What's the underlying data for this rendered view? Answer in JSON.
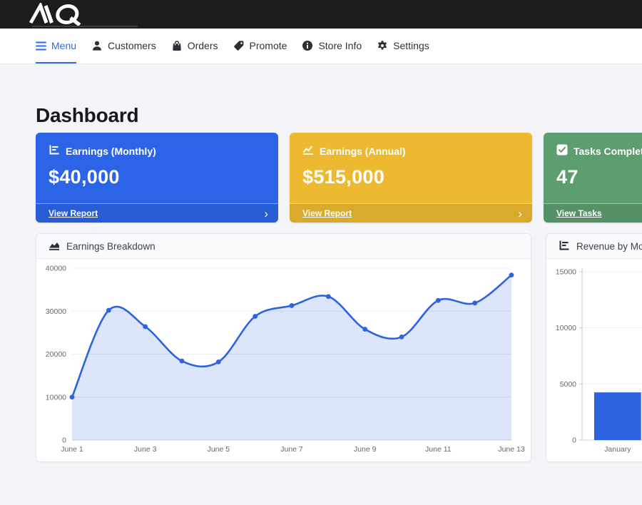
{
  "colors": {
    "accent_blue": "#2d6ae3",
    "topbar_bg": "#1d1d1f",
    "page_bg": "#f3f5f8",
    "chart_blue": "#2d63df"
  },
  "topbar": {
    "brand": "AIQ"
  },
  "nav": {
    "items": [
      {
        "label": "Menu",
        "icon": "hamburger",
        "active": true
      },
      {
        "label": "Customers",
        "icon": "person",
        "active": false
      },
      {
        "label": "Orders",
        "icon": "shopping-bag",
        "active": false
      },
      {
        "label": "Promote",
        "icon": "tag",
        "active": false
      },
      {
        "label": "Store Info",
        "icon": "info-circle",
        "active": false
      },
      {
        "label": "Settings",
        "icon": "gear",
        "active": false
      }
    ]
  },
  "page": {
    "title": "Dashboard"
  },
  "icons": {
    "chevron_right": "›"
  },
  "stat_cards": [
    {
      "title": "Earnings (Monthly)",
      "value": "$40,000",
      "link_label": "View Report",
      "color": "#2c64e8",
      "icon": "bar-chart"
    },
    {
      "title": "Earnings (Annual)",
      "value": "$515,000",
      "link_label": "View Report",
      "color": "#ecb930",
      "icon": "line-chart"
    },
    {
      "title": "Tasks Completed",
      "value": "47",
      "link_label": "View Tasks",
      "color": "#5d9e70",
      "icon": "check-square"
    }
  ],
  "chart_data": [
    {
      "type": "area",
      "title": "Earnings Breakdown",
      "x": [
        "June 1",
        "June 2",
        "June 3",
        "June 4",
        "June 5",
        "June 6",
        "June 7",
        "June 8",
        "June 9",
        "June 10",
        "June 11",
        "June 12",
        "June 13"
      ],
      "values": [
        10000,
        30200,
        26400,
        18400,
        18200,
        28800,
        31300,
        33400,
        25800,
        24000,
        32500,
        31900,
        38400
      ],
      "ylim": [
        0,
        40000
      ],
      "yticks": [
        0,
        10000,
        20000,
        30000,
        40000
      ],
      "x_label_every": 2,
      "line_color": "#2d63df",
      "fill_color": "rgba(45,99,223,0.17)",
      "grid": true,
      "legend": "none",
      "xlabel": "",
      "ylabel": ""
    },
    {
      "type": "bar",
      "title": "Revenue by Month",
      "categories": [
        "January"
      ],
      "values": [
        4250
      ],
      "ylim": [
        0,
        15000
      ],
      "yticks": [
        0,
        5000,
        10000,
        15000
      ],
      "slot_count": 6,
      "bar_color": "#2d63df",
      "grid": true,
      "legend": "none",
      "xlabel": "",
      "ylabel": ""
    }
  ]
}
